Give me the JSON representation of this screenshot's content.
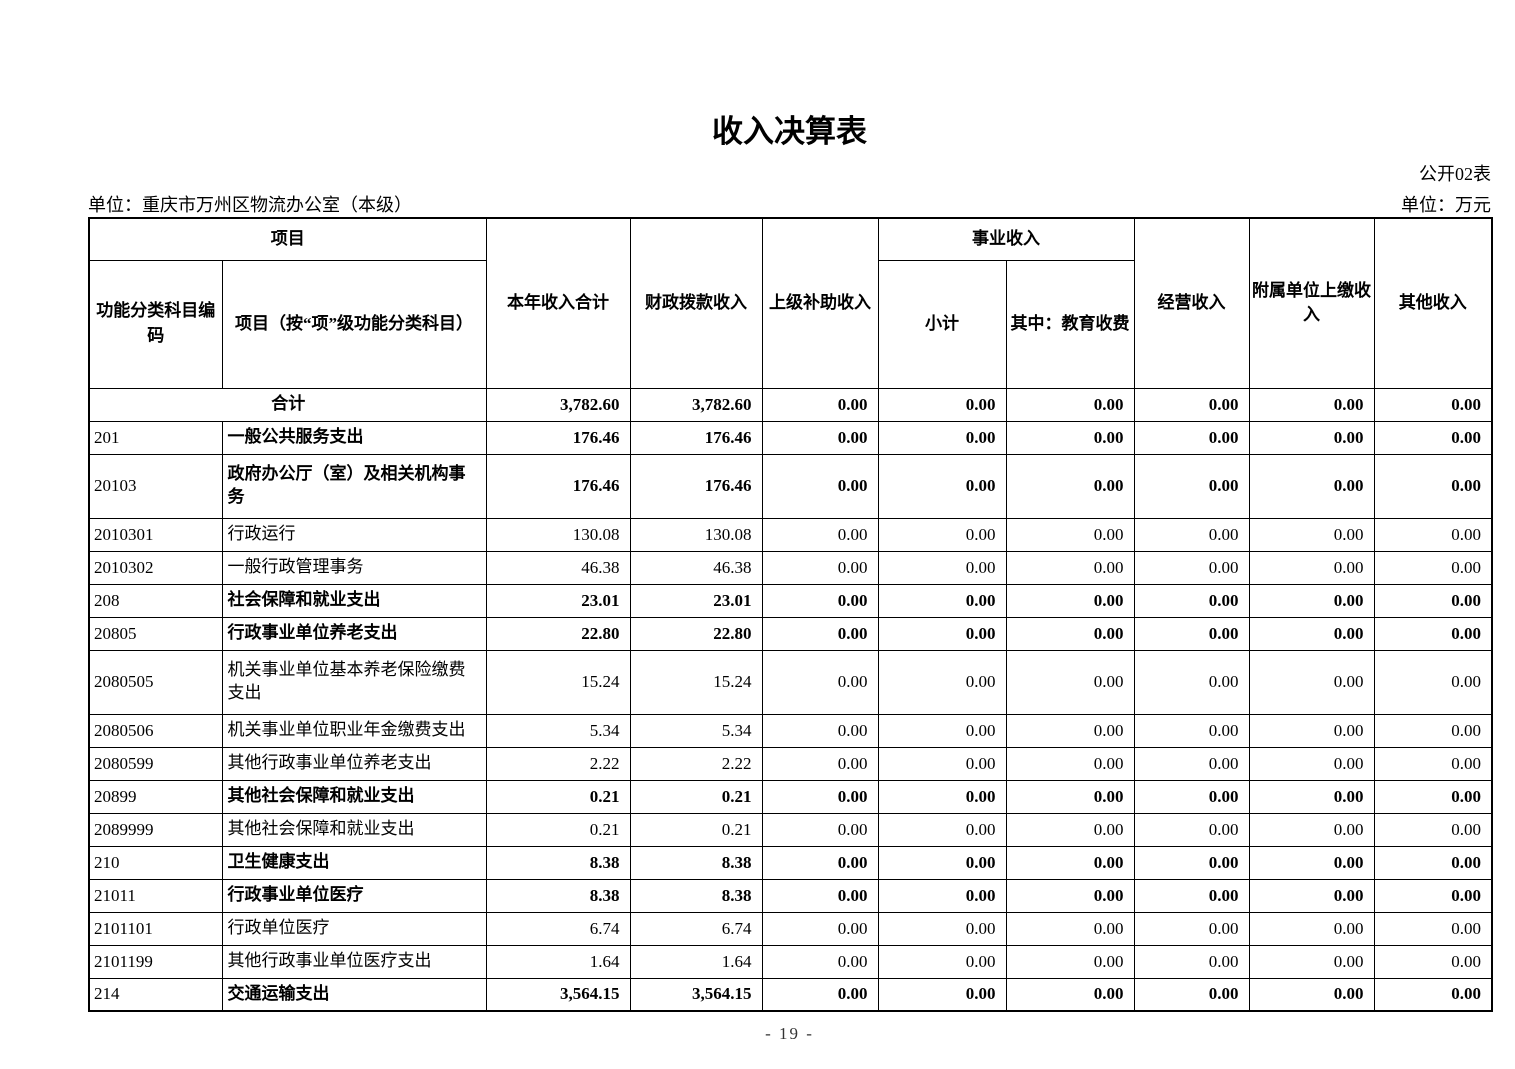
{
  "document": {
    "title": "收入决算表",
    "form_number": "公开02表",
    "unit_left": "单位：重庆市万州区物流办公室（本级）",
    "unit_right": "单位：万元",
    "page_number": "- 19 -"
  },
  "table": {
    "headers": {
      "project_group": "项目",
      "code": "功能分类科目编码",
      "project_item": "项目（按“项”级功能分类科目）",
      "total_income": "本年收入合计",
      "fiscal_allocation": "财政拨款收入",
      "superior_subsidy": "上级补助收入",
      "business_income_group": "事业收入",
      "subtotal": "小计",
      "education_fee": "其中：教育收费",
      "operating_income": "经营收入",
      "affiliated_unit": "附属单位上缴收入",
      "other_income": "其他收入"
    },
    "rows": [
      {
        "code": "",
        "name": "合计",
        "merged": true,
        "bold": true,
        "tall": false,
        "values": [
          "3,782.60",
          "3,782.60",
          "0.00",
          "0.00",
          "0.00",
          "0.00",
          "0.00",
          "0.00"
        ]
      },
      {
        "code": "201",
        "name": "一般公共服务支出",
        "merged": false,
        "bold": true,
        "tall": false,
        "values": [
          "176.46",
          "176.46",
          "0.00",
          "0.00",
          "0.00",
          "0.00",
          "0.00",
          "0.00"
        ]
      },
      {
        "code": "20103",
        "name": "政府办公厅（室）及相关机构事务",
        "merged": false,
        "bold": true,
        "tall": true,
        "values": [
          "176.46",
          "176.46",
          "0.00",
          "0.00",
          "0.00",
          "0.00",
          "0.00",
          "0.00"
        ]
      },
      {
        "code": "2010301",
        "name": "行政运行",
        "merged": false,
        "bold": false,
        "tall": false,
        "values": [
          "130.08",
          "130.08",
          "0.00",
          "0.00",
          "0.00",
          "0.00",
          "0.00",
          "0.00"
        ]
      },
      {
        "code": "2010302",
        "name": "一般行政管理事务",
        "merged": false,
        "bold": false,
        "tall": false,
        "values": [
          "46.38",
          "46.38",
          "0.00",
          "0.00",
          "0.00",
          "0.00",
          "0.00",
          "0.00"
        ]
      },
      {
        "code": "208",
        "name": "社会保障和就业支出",
        "merged": false,
        "bold": true,
        "tall": false,
        "values": [
          "23.01",
          "23.01",
          "0.00",
          "0.00",
          "0.00",
          "0.00",
          "0.00",
          "0.00"
        ]
      },
      {
        "code": "20805",
        "name": "行政事业单位养老支出",
        "merged": false,
        "bold": true,
        "tall": false,
        "values": [
          "22.80",
          "22.80",
          "0.00",
          "0.00",
          "0.00",
          "0.00",
          "0.00",
          "0.00"
        ]
      },
      {
        "code": "2080505",
        "name": "机关事业单位基本养老保险缴费支出",
        "merged": false,
        "bold": false,
        "tall": true,
        "values": [
          "15.24",
          "15.24",
          "0.00",
          "0.00",
          "0.00",
          "0.00",
          "0.00",
          "0.00"
        ]
      },
      {
        "code": "2080506",
        "name": "机关事业单位职业年金缴费支出",
        "merged": false,
        "bold": false,
        "tall": false,
        "values": [
          "5.34",
          "5.34",
          "0.00",
          "0.00",
          "0.00",
          "0.00",
          "0.00",
          "0.00"
        ]
      },
      {
        "code": "2080599",
        "name": "其他行政事业单位养老支出",
        "merged": false,
        "bold": false,
        "tall": false,
        "values": [
          "2.22",
          "2.22",
          "0.00",
          "0.00",
          "0.00",
          "0.00",
          "0.00",
          "0.00"
        ]
      },
      {
        "code": "20899",
        "name": "其他社会保障和就业支出",
        "merged": false,
        "bold": true,
        "tall": false,
        "values": [
          "0.21",
          "0.21",
          "0.00",
          "0.00",
          "0.00",
          "0.00",
          "0.00",
          "0.00"
        ]
      },
      {
        "code": "2089999",
        "name": "其他社会保障和就业支出",
        "merged": false,
        "bold": false,
        "tall": false,
        "values": [
          "0.21",
          "0.21",
          "0.00",
          "0.00",
          "0.00",
          "0.00",
          "0.00",
          "0.00"
        ]
      },
      {
        "code": "210",
        "name": "卫生健康支出",
        "merged": false,
        "bold": true,
        "tall": false,
        "values": [
          "8.38",
          "8.38",
          "0.00",
          "0.00",
          "0.00",
          "0.00",
          "0.00",
          "0.00"
        ]
      },
      {
        "code": "21011",
        "name": "行政事业单位医疗",
        "merged": false,
        "bold": true,
        "tall": false,
        "values": [
          "8.38",
          "8.38",
          "0.00",
          "0.00",
          "0.00",
          "0.00",
          "0.00",
          "0.00"
        ]
      },
      {
        "code": "2101101",
        "name": "行政单位医疗",
        "merged": false,
        "bold": false,
        "tall": false,
        "values": [
          "6.74",
          "6.74",
          "0.00",
          "0.00",
          "0.00",
          "0.00",
          "0.00",
          "0.00"
        ]
      },
      {
        "code": "2101199",
        "name": "其他行政事业单位医疗支出",
        "merged": false,
        "bold": false,
        "tall": false,
        "values": [
          "1.64",
          "1.64",
          "0.00",
          "0.00",
          "0.00",
          "0.00",
          "0.00",
          "0.00"
        ]
      },
      {
        "code": "214",
        "name": "交通运输支出",
        "merged": false,
        "bold": true,
        "tall": false,
        "values": [
          "3,564.15",
          "3,564.15",
          "0.00",
          "0.00",
          "0.00",
          "0.00",
          "0.00",
          "0.00"
        ]
      }
    ]
  }
}
